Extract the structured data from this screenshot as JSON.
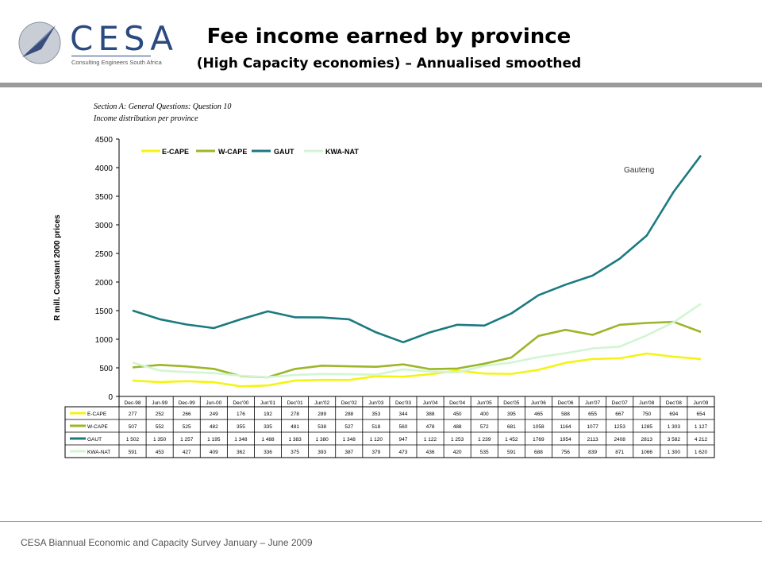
{
  "header": {
    "title": "Fee income earned by province",
    "subtitle": "(High Capacity economies) – Annualised smoothed"
  },
  "logo": {
    "text": "CESA",
    "tagline": "Consulting Engineers South Africa"
  },
  "section": {
    "line1": "Section A: General Questions: Question 10",
    "line2": "Income distribution per province"
  },
  "footer": {
    "text": "CESA Biannual Economic and Capacity Survey January – June 2009"
  },
  "colors": {
    "ecape": "#f4f414",
    "wcape": "#9cb62a",
    "gaut": "#1b7a80",
    "kwanat": "#d2f5d2",
    "topbar": "#9a9a9a"
  },
  "chart_data": {
    "type": "line",
    "title": "",
    "xlabel": "",
    "ylabel": "R mill. Constant 2000 prices",
    "ylim": [
      0,
      4500
    ],
    "yticks": [
      0,
      500,
      1000,
      1500,
      2000,
      2500,
      3000,
      3500,
      4000,
      4500
    ],
    "grid": false,
    "legend": "top-left",
    "annotation": "Gauteng",
    "categories": [
      "Dec-98",
      "Jun-99",
      "Dec-99",
      "Jun-00",
      "Dec'00",
      "Jun'01",
      "Dec'01",
      "Jun'02",
      "Dec'02",
      "Jun'03",
      "Dec'03",
      "Jun'04",
      "Dec'04",
      "Jun'05",
      "Dec'05",
      "Jun'06",
      "Dec'06",
      "Jun'07",
      "Dec'07",
      "Jun'08",
      "Dec'08",
      "Jun'09"
    ],
    "series": [
      {
        "name": "E-CAPE",
        "color": "#f4f414",
        "values": [
          277,
          252,
          266,
          249,
          176,
          192,
          278,
          289,
          288,
          353,
          344,
          388,
          450,
          400,
          395,
          465,
          588,
          655,
          667,
          750,
          694,
          654
        ],
        "labels": [
          "277",
          "252",
          "266",
          "249",
          "176",
          "192",
          "278",
          "289",
          "288",
          "353",
          "344",
          "388",
          "450",
          "400",
          "395",
          "465",
          "588",
          "655",
          "667",
          "750",
          "694",
          "654"
        ]
      },
      {
        "name": "W-CAPE",
        "color": "#9cb62a",
        "values": [
          507,
          552,
          525,
          482,
          355,
          335,
          481,
          538,
          527,
          518,
          560,
          478,
          488,
          572,
          681,
          1058,
          1164,
          1077,
          1253,
          1285,
          1303,
          1127
        ],
        "labels": [
          "507",
          "552",
          "525",
          "482",
          "355",
          "335",
          "481",
          "538",
          "527",
          "518",
          "560",
          "478",
          "488",
          "572",
          "681",
          "1058",
          "1164",
          "1077",
          "1253",
          "1285",
          "1 303",
          "1 127"
        ]
      },
      {
        "name": "GAUT",
        "color": "#1b7a80",
        "values": [
          1502,
          1350,
          1257,
          1195,
          1348,
          1488,
          1383,
          1380,
          1348,
          1120,
          947,
          1122,
          1253,
          1239,
          1452,
          1769,
          1954,
          2113,
          2408,
          2813,
          3582,
          4212
        ],
        "labels": [
          "1 502",
          "1 350",
          "1 257",
          "1 195",
          "1 348",
          "1 488",
          "1 383",
          "1 380",
          "1 348",
          "1 120",
          "947",
          "1 122",
          "1 253",
          "1 239",
          "1 452",
          "1769",
          "1954",
          "2113",
          "2408",
          "2813",
          "3 582",
          "4 212"
        ]
      },
      {
        "name": "KWA-NAT",
        "color": "#d2f5d2",
        "values": [
          591,
          453,
          427,
          409,
          362,
          336,
          375,
          393,
          387,
          379,
          473,
          436,
          420,
          535,
          591,
          688,
          756,
          839,
          871,
          1066,
          1300,
          1620
        ],
        "labels": [
          "591",
          "453",
          "427",
          "409",
          "362",
          "336",
          "375",
          "393",
          "387",
          "379",
          "473",
          "436",
          "420",
          "535",
          "591",
          "688",
          "756",
          "839",
          "871",
          "1066",
          "1 300",
          "1 620"
        ]
      }
    ]
  }
}
